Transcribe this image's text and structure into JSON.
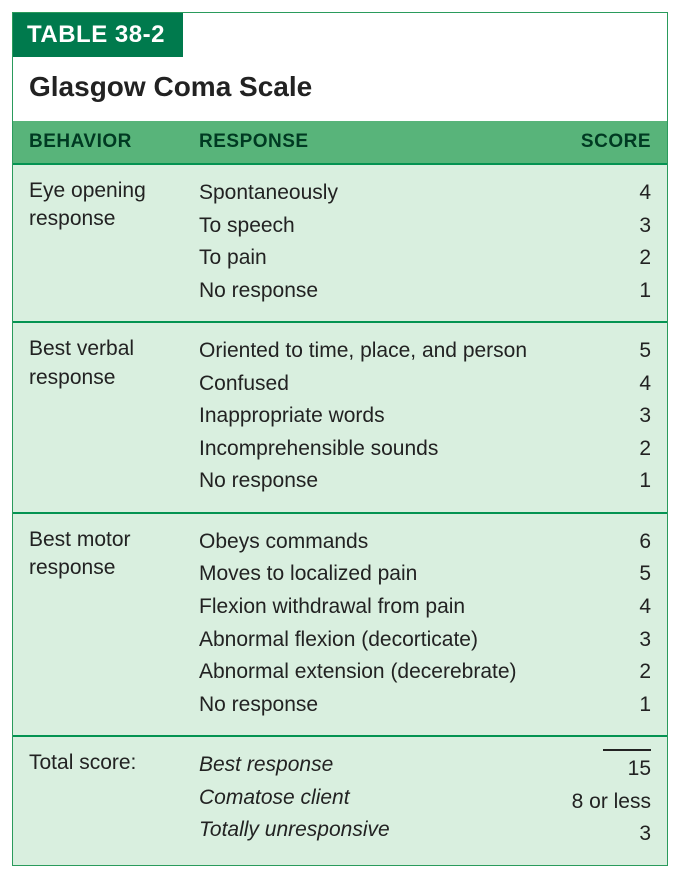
{
  "colors": {
    "tab_bg": "#007a4d",
    "tab_text": "#ffffff",
    "header_bg": "#58b47a",
    "header_text": "#003a22",
    "section_bg": "#d9efdf",
    "divider": "#049352",
    "body_text": "#222222",
    "border": "#2a9b5c"
  },
  "typography": {
    "tab_fontsize": 24,
    "title_fontsize": 28,
    "header_fontsize": 19,
    "body_fontsize": 21
  },
  "tab_label": "TABLE 38-2",
  "title": "Glasgow Coma Scale",
  "columns": {
    "behavior": "BEHAVIOR",
    "response": "RESPONSE",
    "score": "SCORE"
  },
  "sections": [
    {
      "behavior": "Eye opening response",
      "behavior_line1": "Eye opening",
      "behavior_line2": "response",
      "rows": [
        {
          "response": "Spontaneously",
          "score": "4"
        },
        {
          "response": "To speech",
          "score": "3"
        },
        {
          "response": "To pain",
          "score": "2"
        },
        {
          "response": "No response",
          "score": "1"
        }
      ]
    },
    {
      "behavior": "Best verbal response",
      "behavior_line1": "Best verbal",
      "behavior_line2": "response",
      "rows": [
        {
          "response": "Oriented to time, place, and person",
          "score": "5"
        },
        {
          "response": "Confused",
          "score": "4"
        },
        {
          "response": "Inappropriate words",
          "score": "3"
        },
        {
          "response": "Incomprehensible sounds",
          "score": "2"
        },
        {
          "response": "No response",
          "score": "1"
        }
      ]
    },
    {
      "behavior": "Best motor response",
      "behavior_line1": "Best motor",
      "behavior_line2": "response",
      "rows": [
        {
          "response": "Obeys commands",
          "score": "6"
        },
        {
          "response": "Moves to localized pain",
          "score": "5"
        },
        {
          "response": "Flexion withdrawal from pain",
          "score": "4"
        },
        {
          "response": "Abnormal flexion (decorticate)",
          "score": "3"
        },
        {
          "response": "Abnormal extension (decerebrate)",
          "score": "2"
        },
        {
          "response": "No response",
          "score": "1"
        }
      ]
    }
  ],
  "total": {
    "label": "Total score:",
    "rows": [
      {
        "response": "Best response",
        "score": "15"
      },
      {
        "response": "Comatose client",
        "score": "8 or less"
      },
      {
        "response": "Totally unresponsive",
        "score": "3"
      }
    ]
  }
}
